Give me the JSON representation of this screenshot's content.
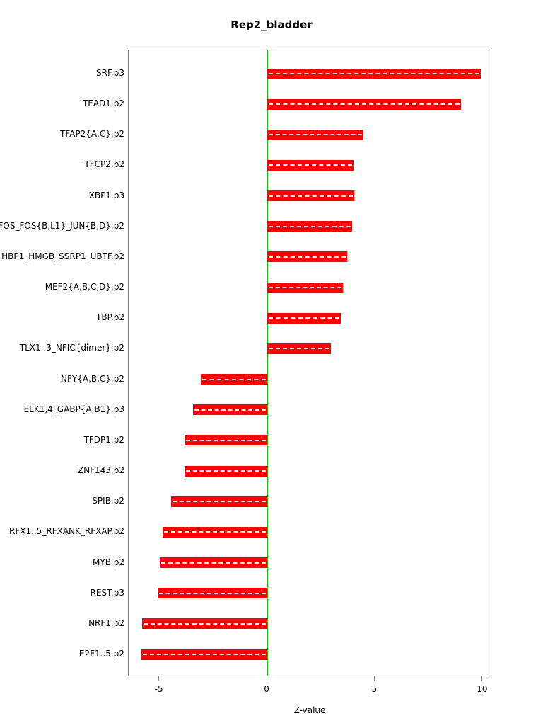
{
  "chart_data": {
    "type": "bar",
    "orientation": "horizontal",
    "title": "Rep2_bladder",
    "xlabel": "Z-value",
    "categories": [
      "SRF.p3",
      "TEAD1.p2",
      "TFAP2{A,C}.p2",
      "TFCP2.p2",
      "XBP1.p3",
      "FOS_FOS{B,L1}_JUN{B,D}.p2",
      "HBP1_HMGB_SSRP1_UBTF.p2",
      "MEF2{A,B,C,D}.p2",
      "TBP.p2",
      "TLX1..3_NFIC{dimer}.p2",
      "NFY{A,B,C}.p2",
      "ELK1,4_GABP{A,B1}.p3",
      "TFDP1.p2",
      "ZNF143.p2",
      "SPIB.p2",
      "RFX1..5_RFXANK_RFXAP.p2",
      "MYB.p2",
      "REST.p3",
      "NRF1.p2",
      "E2F1..5.p2"
    ],
    "values": [
      9.9,
      9.0,
      4.45,
      4.0,
      4.05,
      3.95,
      3.7,
      3.5,
      3.4,
      2.95,
      -3.1,
      -3.45,
      -3.85,
      -3.85,
      -4.45,
      -4.85,
      -5.0,
      -5.1,
      -5.8,
      -5.85
    ],
    "x_ticks": [
      -5,
      0,
      5,
      10
    ],
    "xlim": [
      -6.43,
      10.43
    ],
    "bar_color": "#FF0000",
    "zero_line_color": "#00CC00",
    "frame_color": "#7f7f7f",
    "grid": false,
    "legend": "none"
  }
}
